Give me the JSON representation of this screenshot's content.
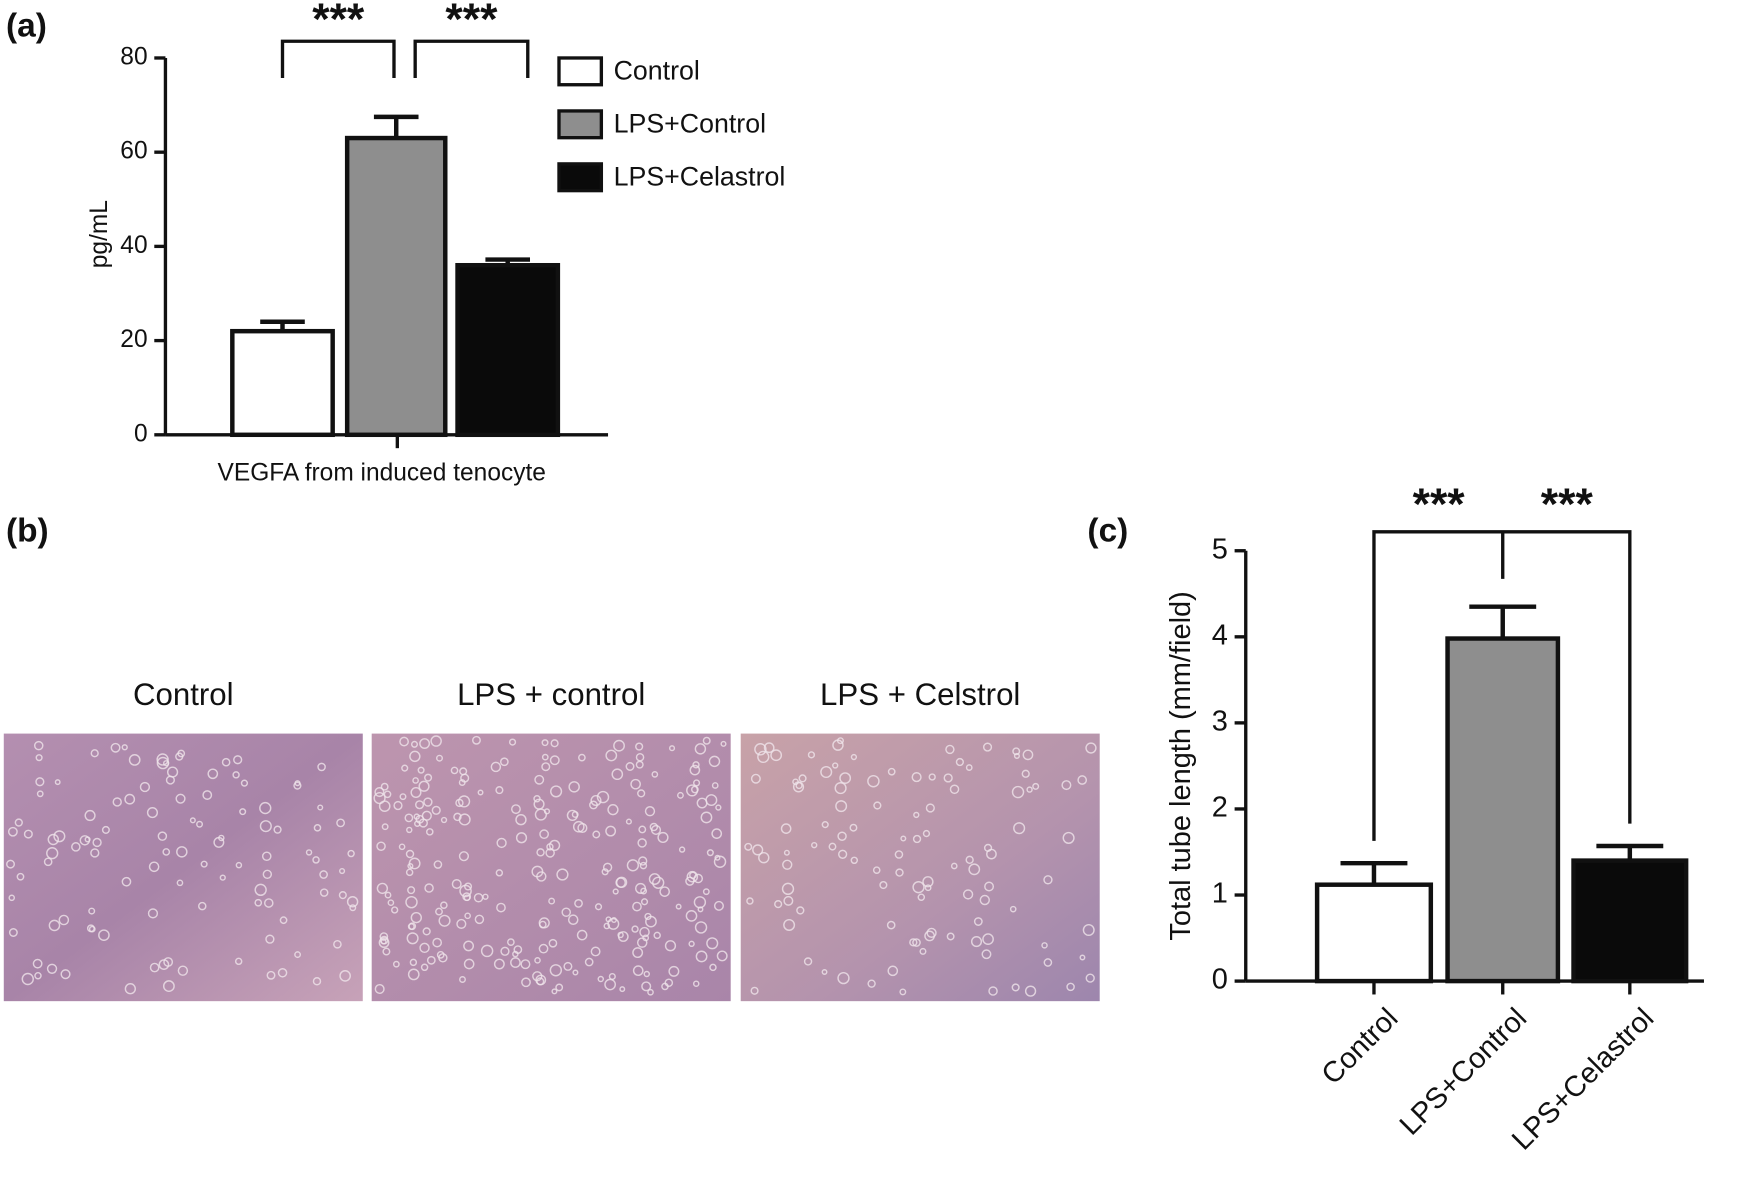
{
  "chart_data": [
    {
      "type": "bar",
      "panel": "(a)",
      "x_label": "VEGFA from induced tenocyte",
      "y_label": "pg/mL",
      "series": [
        {
          "name": "Control",
          "color": "#ffffff",
          "values": [
            22
          ],
          "errors": [
            2
          ]
        },
        {
          "name": "LPS+Control",
          "color": "#8e8e8e",
          "values": [
            63
          ],
          "errors": [
            4.5
          ]
        },
        {
          "name": "LPS+Celastrol",
          "color": "#0a0a0a",
          "values": [
            36
          ],
          "errors": [
            1.2
          ]
        }
      ],
      "ylim": [
        0,
        80
      ],
      "yticks": [
        0,
        20,
        40,
        60,
        80
      ],
      "legend": "top-right",
      "annotations": [
        "***",
        "***"
      ]
    },
    {
      "type": "bar",
      "panel": "(c)",
      "y_label": "Total tube length (mm/field)",
      "categories": [
        "Control",
        "LPS+Control",
        "LPS+Celastrol"
      ],
      "values": [
        1.12,
        3.98,
        1.4
      ],
      "errors": [
        0.25,
        0.37,
        0.17
      ],
      "colors": [
        "#ffffff",
        "#8e8e8e",
        "#0a0a0a"
      ],
      "ylim": [
        0,
        5
      ],
      "yticks": [
        0,
        1,
        2,
        3,
        4,
        5
      ],
      "annotations": [
        "***",
        "***"
      ]
    }
  ],
  "panel_b": {
    "label": "(b)",
    "images": [
      "Control",
      "LPS + control",
      "LPS + Celstrol"
    ]
  }
}
